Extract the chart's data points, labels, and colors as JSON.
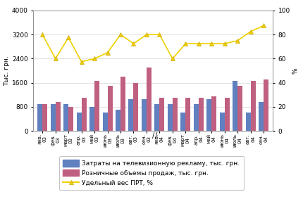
{
  "categories": [
    "янв.\n03",
    "фев.\n03",
    "март\n03",
    "апр.\n03",
    "май\n03",
    "июнь\n03",
    "июль\n03",
    "авг.\n03",
    "сен.\n03",
    "янв.\n04",
    "фев.\n04",
    "март\n04",
    "апр.\n04",
    "май\n04",
    "июнь\n04",
    "июль\n04",
    "авг.\n04",
    "сен.\n04"
  ],
  "tv_costs": [
    900,
    900,
    900,
    600,
    800,
    600,
    700,
    1050,
    1050,
    900,
    900,
    600,
    900,
    1050,
    600,
    1650,
    600,
    950
  ],
  "retail_sales": [
    900,
    950,
    800,
    1100,
    1650,
    1500,
    1800,
    1600,
    2100,
    1100,
    1100,
    1100,
    1100,
    1150,
    1100,
    1500,
    1650,
    1700
  ],
  "prt_weight": [
    3200,
    2400,
    3100,
    2300,
    2400,
    2600,
    3200,
    2900,
    3200,
    3200,
    2400,
    2900,
    2900,
    2900,
    2900,
    3000,
    3300,
    3500
  ],
  "bar_color_tv": "#6080c0",
  "bar_color_retail": "#c06080",
  "line_color": "#f0d000",
  "line_marker": "^",
  "ylim_left": [
    0,
    4000
  ],
  "ylim_right": [
    0,
    100
  ],
  "yticks_left": [
    0,
    800,
    1600,
    2400,
    3200,
    4000
  ],
  "yticks_right": [
    0,
    20,
    40,
    60,
    80,
    100
  ],
  "ylabel_left": "Тыс. грн.",
  "ylabel_right": "%",
  "legend_tv": "Затраты на телевизионную рекламу, тыс. грн.",
  "legend_retail": "Розничные объемы продаж, тыс. грн.",
  "legend_prt": "Удельный вес ПРТ, %",
  "bg_color": "#ffffff",
  "bar_width": 0.38
}
